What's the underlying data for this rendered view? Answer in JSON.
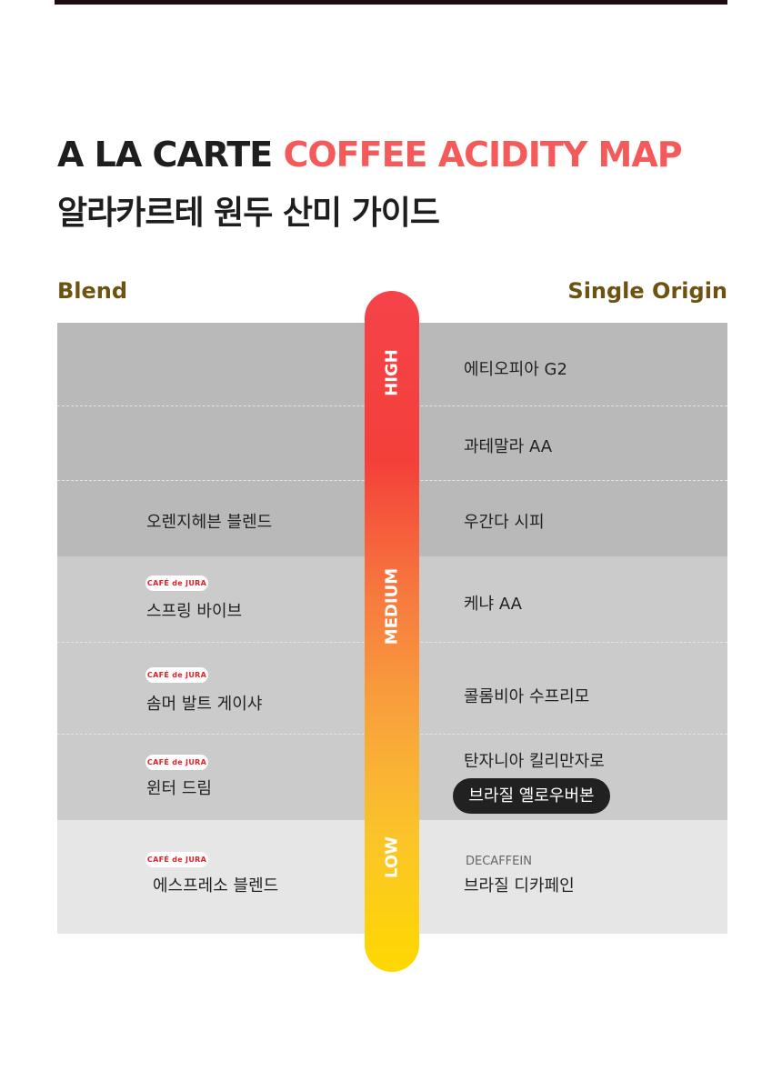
{
  "title": {
    "prefix": "A LA CARTE",
    "accent": "COFFEE ACIDITY MAP",
    "subtitle": "알라카르테 원두 산미 가이드"
  },
  "columns": {
    "left": "Blend",
    "right": "Single Origin"
  },
  "levels": {
    "high": "HIGH",
    "medium": "MEDIUM",
    "low": "LOW"
  },
  "badge": "CAFÉ de JURA",
  "blend": [
    "오렌지헤븐 블렌드",
    "스프링 바이브",
    "솜머 발트 게이샤",
    "윈터 드림",
    "에스프레소 블렌드"
  ],
  "single": [
    "에티오피아 G2",
    "과테말라 AA",
    "우간다 시피",
    "케냐 AA",
    "콜롬비아 수프리모",
    "탄자니아 킬리만자로",
    "브라질 옐로우버본",
    "브라질 디카페인"
  ],
  "decaf_label": "DECAFFEIN",
  "colors": {
    "accent": "#f55a5a",
    "column_header": "#6e520f",
    "gradient_top": "#f5434a",
    "gradient_bottom": "#ffd800"
  }
}
